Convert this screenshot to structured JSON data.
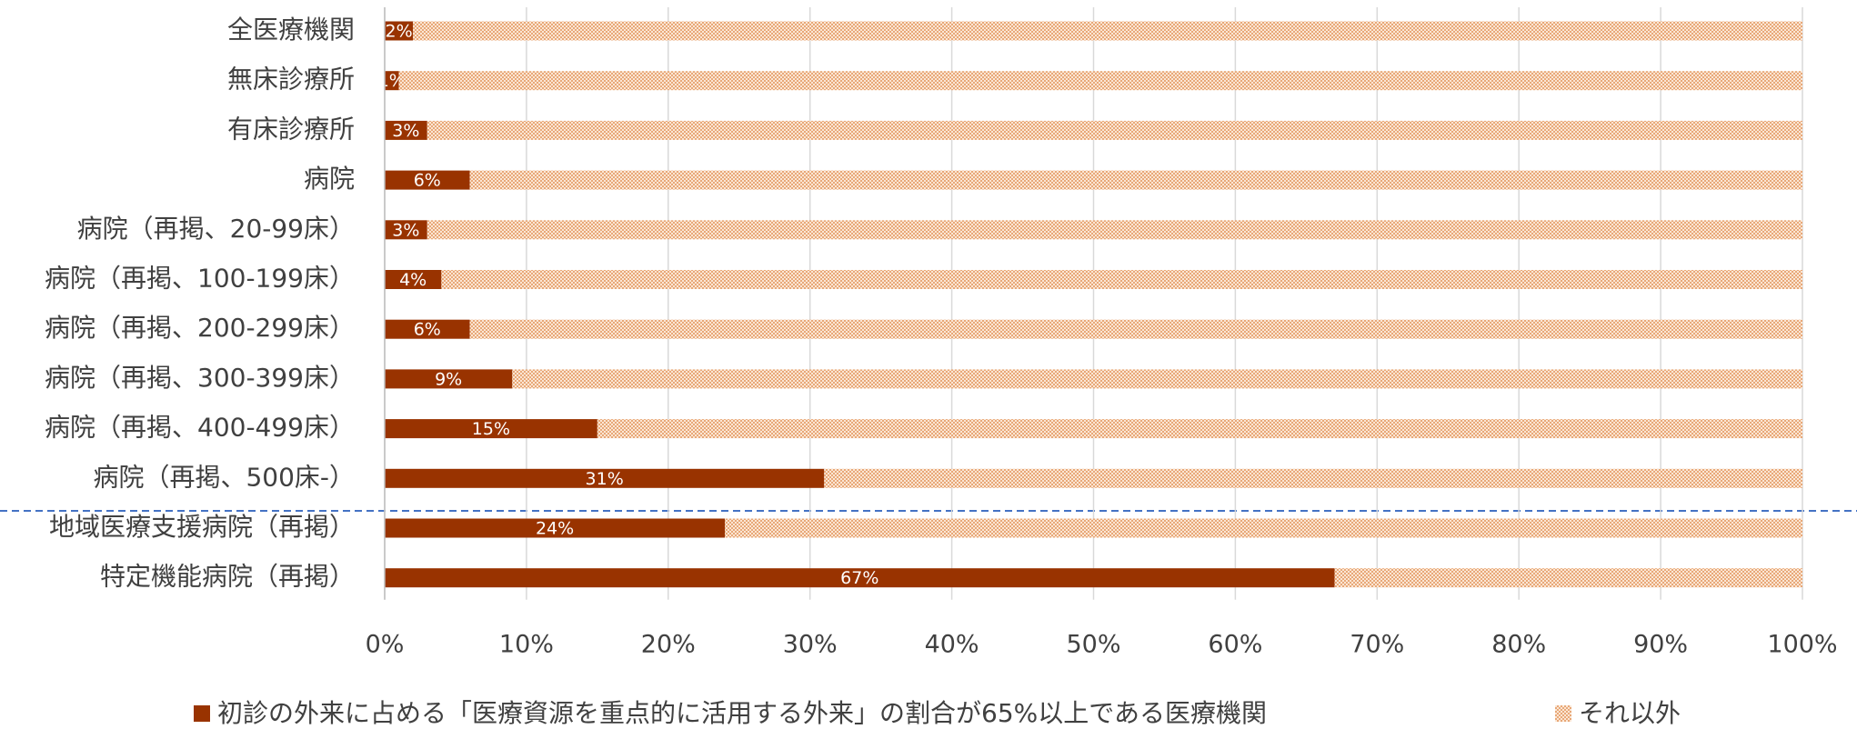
{
  "chart_data": {
    "type": "stacked_barh",
    "categories": [
      "全医療機関",
      "無床診療所",
      "有床診療所",
      "病院",
      "病院（再掲、20-99床）",
      "病院（再掲、100-199床）",
      "病院（再掲、200-299床）",
      "病院（再掲、300-399床）",
      "病院（再掲、400-499床）",
      "病院（再掲、500床-）",
      "地域医療支援病院（再掲）",
      "特定機能病院（再掲）"
    ],
    "series": [
      {
        "name": "初診の外来に占める「医療資源を重点的に活用する外来」の割合が65%以上である医療機関",
        "color": "#993300",
        "values": [
          2,
          1,
          3,
          6,
          3,
          4,
          6,
          9,
          15,
          31,
          24,
          67
        ],
        "value_labels": [
          "2%",
          "1%",
          "3%",
          "6%",
          "3%",
          "4%",
          "6%",
          "9%",
          "15%",
          "31%",
          "24%",
          "67%"
        ]
      },
      {
        "name": "それ以外",
        "color": "#f2c6a0",
        "values": [
          98,
          99,
          97,
          94,
          97,
          96,
          94,
          91,
          85,
          69,
          76,
          33
        ]
      }
    ],
    "xlim": [
      0,
      100
    ],
    "xticks": [
      {
        "value": 0,
        "label": "0%"
      },
      {
        "value": 10,
        "label": "10%"
      },
      {
        "value": 20,
        "label": "20%"
      },
      {
        "value": 30,
        "label": "30%"
      },
      {
        "value": 40,
        "label": "40%"
      },
      {
        "value": 50,
        "label": "50%"
      },
      {
        "value": 60,
        "label": "60%"
      },
      {
        "value": 70,
        "label": "70%"
      },
      {
        "value": 80,
        "label": "80%"
      },
      {
        "value": 90,
        "label": "90%"
      },
      {
        "value": 100,
        "label": "100%"
      }
    ],
    "grid": true
  }
}
